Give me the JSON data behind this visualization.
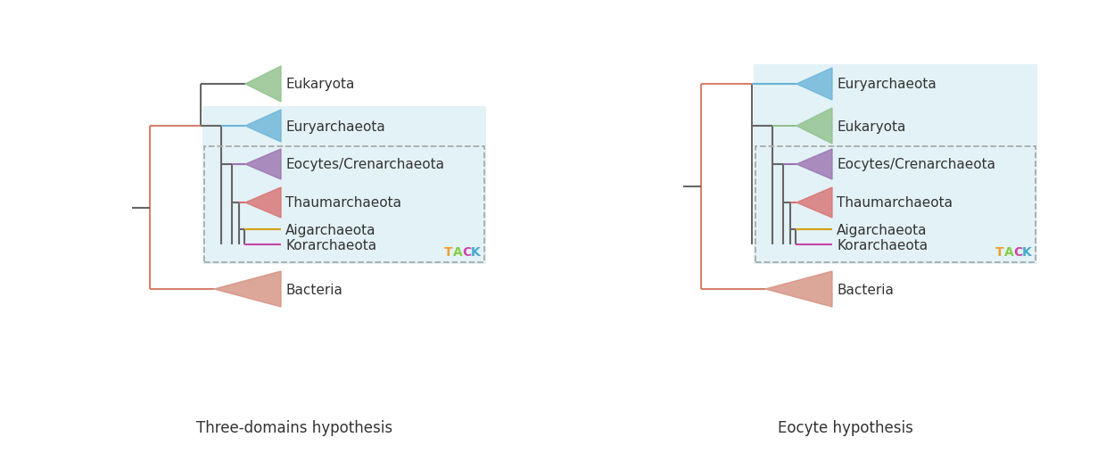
{
  "left_title": "Three-domains hypothesis",
  "right_title": "Eocyte hypothesis",
  "tack_label": "TACK",
  "tack_letter_colors": [
    "#f0a030",
    "#88cc44",
    "#cc44aa",
    "#44aacc"
  ],
  "bg_color": "#ffffff",
  "archaea_box_color": "#cde8f0",
  "colors": {
    "eukaryota": "#8fc08a",
    "euryarchaeota": "#6ab4d8",
    "eocytes": "#9b72b0",
    "thaumarchaeota": "#d97070",
    "aigarchaeota": "#d4a017",
    "korarchaeota": "#cc44aa",
    "bacteria": "#d49080",
    "tree_dark": "#666666",
    "tree_orange": "#d4826a"
  }
}
